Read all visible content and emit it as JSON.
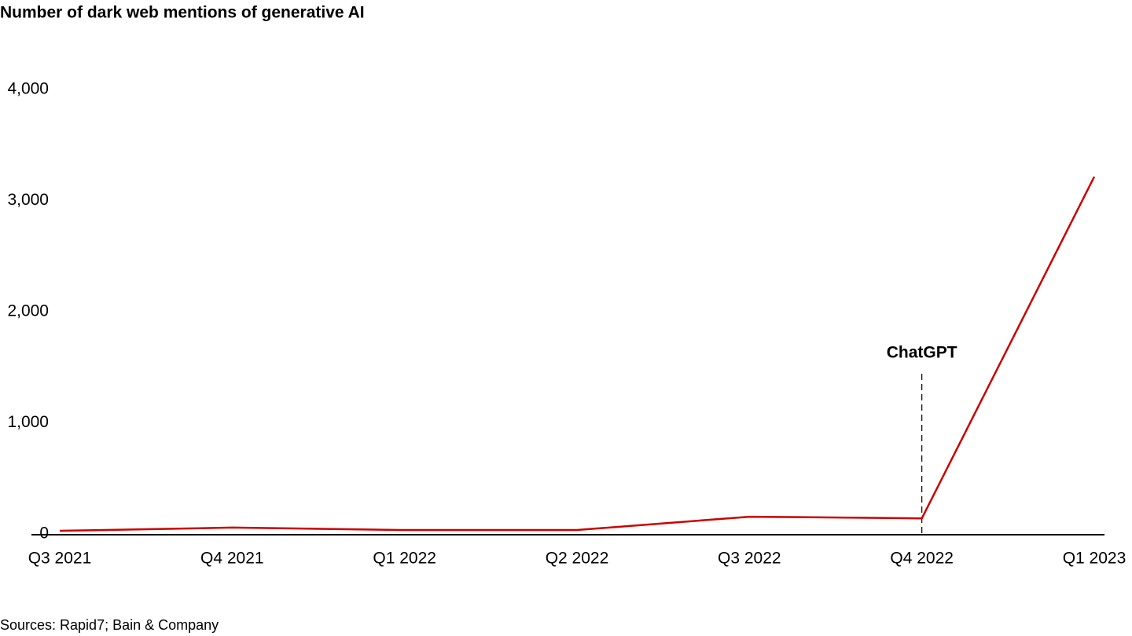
{
  "chart_data": {
    "type": "line",
    "title": "Number of dark web mentions of generative AI",
    "source": "Sources: Rapid7; Bain & Company",
    "categories": [
      "Q3 2021",
      "Q4 2021",
      "Q1 2022",
      "Q2 2022",
      "Q3 2022",
      "Q4 2022",
      "Q1 2023"
    ],
    "values": [
      28,
      57,
      35,
      35,
      155,
      140,
      3215
    ],
    "color": "#cc0000",
    "ylim": [
      0,
      4000
    ],
    "yticks": [
      0,
      {
        "value": 1000,
        "label": "1,000"
      },
      {
        "value": 2000,
        "label": "2,000"
      },
      {
        "value": 3000,
        "label": "3,000"
      },
      {
        "value": 4000,
        "label": "4,000"
      }
    ],
    "grid": false,
    "annotation": {
      "text": "ChatGPT",
      "category_index": 5
    }
  }
}
